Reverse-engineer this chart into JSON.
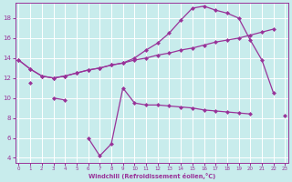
{
  "xlabel": "Windchill (Refroidissement éolien,°C)",
  "bg_color": "#c8ecec",
  "line_color": "#993399",
  "ylim": [
    3.5,
    19.5
  ],
  "xlim": [
    -0.3,
    23.3
  ],
  "yticks": [
    4,
    6,
    8,
    10,
    12,
    14,
    16,
    18
  ],
  "xticks": [
    0,
    1,
    2,
    3,
    4,
    5,
    6,
    7,
    8,
    9,
    10,
    11,
    12,
    13,
    14,
    15,
    16,
    17,
    18,
    19,
    20,
    21,
    22,
    23
  ],
  "line_a_x": [
    0,
    1,
    2,
    3,
    4,
    5,
    6,
    7,
    8,
    9,
    10,
    11,
    12,
    13,
    14,
    15,
    16,
    17,
    18,
    19,
    20,
    21,
    22
  ],
  "line_a_y": [
    13.8,
    12.9,
    12.2,
    12.0,
    12.2,
    12.5,
    12.8,
    13.0,
    13.3,
    13.5,
    13.8,
    14.0,
    14.3,
    14.5,
    14.8,
    15.0,
    15.3,
    15.6,
    15.8,
    16.0,
    16.3,
    16.6,
    16.9
  ],
  "line_b_x": [
    0,
    1,
    2,
    3,
    4,
    5,
    6,
    7,
    8,
    9,
    10,
    11,
    12,
    13,
    14,
    15,
    16,
    17,
    18,
    19,
    20,
    21,
    22
  ],
  "line_b_y": [
    13.8,
    12.9,
    12.2,
    12.0,
    12.2,
    12.5,
    12.8,
    13.0,
    13.3,
    13.5,
    14.0,
    14.8,
    15.5,
    16.5,
    17.8,
    19.0,
    19.2,
    18.8,
    18.5,
    18.0,
    15.8,
    13.8,
    10.5
  ],
  "line_c_x": [
    1,
    3,
    4,
    6,
    7,
    8,
    9,
    10,
    11,
    12,
    13,
    14,
    15,
    16,
    17,
    18,
    19,
    20,
    23
  ],
  "line_c_y": [
    11.5,
    10.0,
    9.8,
    6.0,
    4.2,
    5.4,
    11.0,
    9.5,
    9.3,
    9.3,
    9.2,
    9.1,
    9.0,
    8.8,
    8.7,
    8.6,
    8.5,
    8.4,
    8.2
  ],
  "line_c_gaps": [
    1,
    1,
    1,
    1,
    1,
    1,
    1,
    1,
    1,
    1,
    1,
    1,
    1,
    1,
    1,
    1,
    1,
    1,
    1
  ]
}
